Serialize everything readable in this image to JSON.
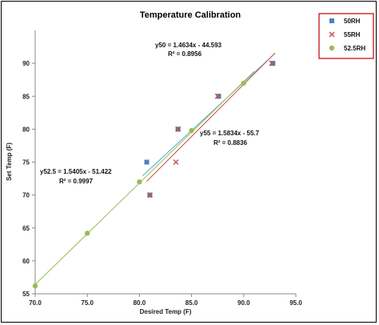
{
  "chart_data": {
    "type": "scatter",
    "title": "Temperature Calibration",
    "xlabel": "Desired Temp (F)",
    "ylabel": "Set Temp (F)",
    "xlim": [
      70,
      95
    ],
    "ylim": [
      55,
      95
    ],
    "xticks": [
      "70.0",
      "75.0",
      "80.0",
      "85.0",
      "90.0",
      "95.0"
    ],
    "yticks": [
      "55",
      "60",
      "65",
      "70",
      "75",
      "80",
      "85",
      "90"
    ],
    "grid": false,
    "legend_position": "top-right outside",
    "series": [
      {
        "name": "50RH",
        "marker": "square",
        "color": "#4f81bd",
        "x": [
          80.7,
          81.0,
          83.7,
          87.6,
          92.8
        ],
        "y": [
          75,
          70,
          80,
          85,
          90
        ],
        "trendline": {
          "slope": 1.4634,
          "intercept": -44.593,
          "x_range": [
            80.3,
            93.0
          ],
          "color": "#4bacc6"
        }
      },
      {
        "name": "55RH",
        "marker": "x",
        "color": "#c0504d",
        "x": [
          81.0,
          83.5,
          83.7,
          87.5,
          92.7
        ],
        "y": [
          70,
          75,
          80,
          85,
          90
        ],
        "trendline": {
          "slope": 1.5834,
          "intercept": -55.7,
          "x_range": [
            80.7,
            93.0
          ],
          "color": "#c0504d"
        }
      },
      {
        "name": "52.5RH",
        "marker": "circle",
        "color": "#9bbb59",
        "x": [
          70,
          75,
          80,
          85,
          90
        ],
        "y": [
          56.2,
          64.2,
          72,
          79.8,
          87
        ],
        "trendline": {
          "slope": 1.5405,
          "intercept": -51.422,
          "x_range": [
            70.0,
            91.0
          ],
          "color": "#9bbb59"
        }
      }
    ],
    "annotations": [
      {
        "id": "eq50",
        "line1": "y50 = 1.4634x - 44.593",
        "line2": "R² = 0.8956"
      },
      {
        "id": "eq55",
        "line1": "y55 = 1.5834x - 55.7",
        "line2": "R² = 0.8836"
      },
      {
        "id": "eq525",
        "line1": "y52.5 = 1.5405x - 51.422",
        "line2": "R² = 0.9997"
      }
    ],
    "legend_border_color": "#c00000"
  }
}
